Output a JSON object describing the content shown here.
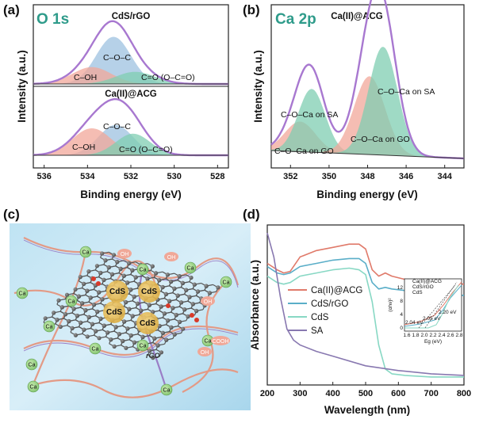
{
  "figure": {
    "panel_labels": [
      "(a)",
      "(b)",
      "(c)",
      "(d)"
    ],
    "colors": {
      "envelope": "#a878d0",
      "cooc_fill": "#9ec2e0",
      "coh_fill": "#f2a79a",
      "co_fill": "#7fcdb2",
      "baseline": "#333333",
      "title_teal": "#2e9b8a"
    }
  },
  "panel_c": {
    "rgo_label": "rGO",
    "cds_labels": [
      "CdS",
      "CdS",
      "CdS",
      "CdS"
    ],
    "ca_label": "Ca",
    "oh_label": "OH",
    "cooh_label": "COOH"
  },
  "chart_data": [
    {
      "type": "area",
      "panel": "(a)",
      "title": "O 1s",
      "xlabel": "Binding energy (eV)",
      "ylabel": "Intensity (a.u.)",
      "xlim": [
        536.5,
        527.5
      ],
      "x_ticks": [
        536,
        534,
        532,
        530,
        528
      ],
      "subplots": [
        {
          "title": "CdS/rGO",
          "peaks": [
            {
              "name": "C–O–C",
              "center": 532.8,
              "height": 0.7,
              "width": 0.8
            },
            {
              "name": "C–OH",
              "center": 533.8,
              "height": 0.25,
              "width": 0.9
            },
            {
              "name": "C=O (O–C=O)",
              "center": 531.8,
              "height": 0.18,
              "width": 0.9
            }
          ],
          "annotations": [
            "C–O–C",
            "C–OH",
            "C=O (O–C=O)"
          ]
        },
        {
          "title": "Ca(II)@ACG",
          "peaks": [
            {
              "name": "C–O–C",
              "center": 532.7,
              "height": 0.45,
              "width": 0.8
            },
            {
              "name": "C–OH",
              "center": 533.8,
              "height": 0.4,
              "width": 0.9
            },
            {
              "name": "C=O (O–C=O)",
              "center": 531.9,
              "height": 0.32,
              "width": 0.8
            }
          ],
          "annotations": [
            "C–O–C",
            "C–OH",
            "C=O (O–C=O)"
          ]
        }
      ]
    },
    {
      "type": "area",
      "panel": "(b)",
      "title": "Ca 2p",
      "subtitle": "Ca(II)@ACG",
      "xlabel": "Binding energy (eV)",
      "ylabel": "Intensity (a.u.)",
      "xlim": [
        353,
        343
      ],
      "x_ticks": [
        352,
        350,
        348,
        346,
        344
      ],
      "peaks": [
        {
          "name": "C–O–Ca on GO",
          "center": 351.5,
          "height": 0.2,
          "width": 0.8
        },
        {
          "name": "C–O–Ca on SA",
          "center": 350.9,
          "height": 0.42,
          "width": 0.7
        },
        {
          "name": "C–O–Ca on GO",
          "center": 347.9,
          "height": 0.52,
          "width": 0.8
        },
        {
          "name": "C–O–Ca on SA",
          "center": 347.2,
          "height": 0.72,
          "width": 0.75
        }
      ],
      "annotations": [
        "C–O–Ca on SA",
        "C–O–Ca on SA",
        "C–O–Ca on GO",
        "C–O–Ca on GO"
      ]
    },
    {
      "type": "line",
      "panel": "(d)",
      "xlabel": "Wavelength (nm)",
      "ylabel": "Absorbance (a.u.)",
      "xlim": [
        200,
        800
      ],
      "x_ticks": [
        200,
        300,
        400,
        500,
        600,
        700,
        800
      ],
      "ylim": [
        0,
        1
      ],
      "legend_position": "center-right",
      "series": [
        {
          "name": "Ca(II)@ACG",
          "color": "#e07a6a",
          "x": [
            200,
            230,
            250,
            270,
            300,
            350,
            400,
            450,
            480,
            500,
            520,
            540,
            560,
            580,
            620,
            700,
            800
          ],
          "y": [
            0.76,
            0.72,
            0.7,
            0.71,
            0.8,
            0.84,
            0.86,
            0.88,
            0.88,
            0.85,
            0.72,
            0.68,
            0.7,
            0.68,
            0.66,
            0.64,
            0.63
          ]
        },
        {
          "name": "CdS/rGO",
          "color": "#5aaec8",
          "x": [
            200,
            230,
            250,
            270,
            300,
            350,
            400,
            450,
            480,
            500,
            520,
            540,
            560,
            580,
            620,
            700,
            800
          ],
          "y": [
            0.74,
            0.7,
            0.69,
            0.7,
            0.74,
            0.76,
            0.78,
            0.79,
            0.79,
            0.76,
            0.64,
            0.6,
            0.61,
            0.6,
            0.59,
            0.57,
            0.56
          ]
        },
        {
          "name": "CdS",
          "color": "#88d8c4",
          "x": [
            200,
            230,
            250,
            270,
            300,
            350,
            400,
            450,
            480,
            500,
            520,
            540,
            560,
            580,
            620,
            700,
            800
          ],
          "y": [
            0.68,
            0.64,
            0.63,
            0.64,
            0.68,
            0.7,
            0.72,
            0.73,
            0.72,
            0.69,
            0.52,
            0.25,
            0.1,
            0.07,
            0.06,
            0.05,
            0.05
          ]
        },
        {
          "name": "SA",
          "color": "#8878b0",
          "x": [
            200,
            220,
            240,
            260,
            280,
            300,
            350,
            400,
            500,
            600,
            700,
            800
          ],
          "y": [
            0.95,
            0.8,
            0.55,
            0.35,
            0.28,
            0.25,
            0.21,
            0.18,
            0.12,
            0.09,
            0.07,
            0.06
          ]
        }
      ],
      "inset": {
        "xlabel": "Eg (eV)",
        "ylabel": "(αhν)²",
        "x_ticks": [
          "1.6",
          "1.8",
          "2.0",
          "2.2",
          "2.4",
          "2.6",
          "2.8"
        ],
        "y_ticks": [
          "0",
          "4",
          "8",
          "12"
        ],
        "legend": [
          "Ca(II)@ACG",
          "CdS/rGO",
          "CdS"
        ],
        "gap_labels": [
          "2.20 eV",
          "2.04 eV",
          "2.05 eV"
        ]
      }
    }
  ]
}
